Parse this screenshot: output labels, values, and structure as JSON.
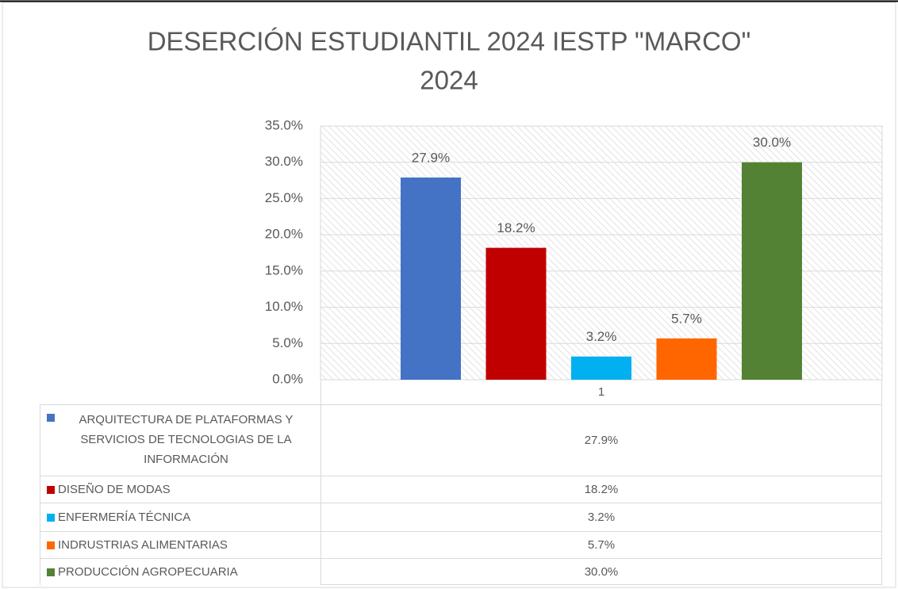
{
  "chart_data": {
    "type": "bar",
    "title": "DESERCIÓN ESTUDIANTIL 2024  IESTP \"MARCO\"",
    "subtitle": "2024",
    "categories": [
      "1"
    ],
    "series": [
      {
        "name": "ARQUITECTURA DE PLATAFORMAS Y SERVICIOS DE TECNOLOGIAS DE LA INFORMACIÓN",
        "color": "#4472c4",
        "values": [
          27.9
        ],
        "value_labels": [
          "27.9%"
        ]
      },
      {
        "name": "DISEÑO DE MODAS",
        "color": "#c00000",
        "values": [
          18.2
        ],
        "value_labels": [
          "18.2%"
        ]
      },
      {
        "name": "ENFERMERÍA TÉCNICA",
        "color": "#00b0f0",
        "values": [
          3.2
        ],
        "value_labels": [
          "3.2%"
        ]
      },
      {
        "name": "INDRUSTRIAS ALIMENTARIAS",
        "color": "#ff6600",
        "values": [
          5.7
        ],
        "value_labels": [
          "5.7%"
        ]
      },
      {
        "name": "PRODUCCIÓN AGROPECUARIA",
        "color": "#548235",
        "values": [
          30.0
        ],
        "value_labels": [
          "30.0%"
        ]
      }
    ],
    "ylim": [
      0,
      35
    ],
    "yticks": [
      {
        "value": 0,
        "label": "0.0%"
      },
      {
        "value": 5,
        "label": "5.0%"
      },
      {
        "value": 10,
        "label": "10.0%"
      },
      {
        "value": 15,
        "label": "15.0%"
      },
      {
        "value": 20,
        "label": "20.0%"
      },
      {
        "value": 25,
        "label": "25.0%"
      },
      {
        "value": 30,
        "label": "30.0%"
      },
      {
        "value": 35,
        "label": "35.0%"
      }
    ],
    "grid": true
  }
}
